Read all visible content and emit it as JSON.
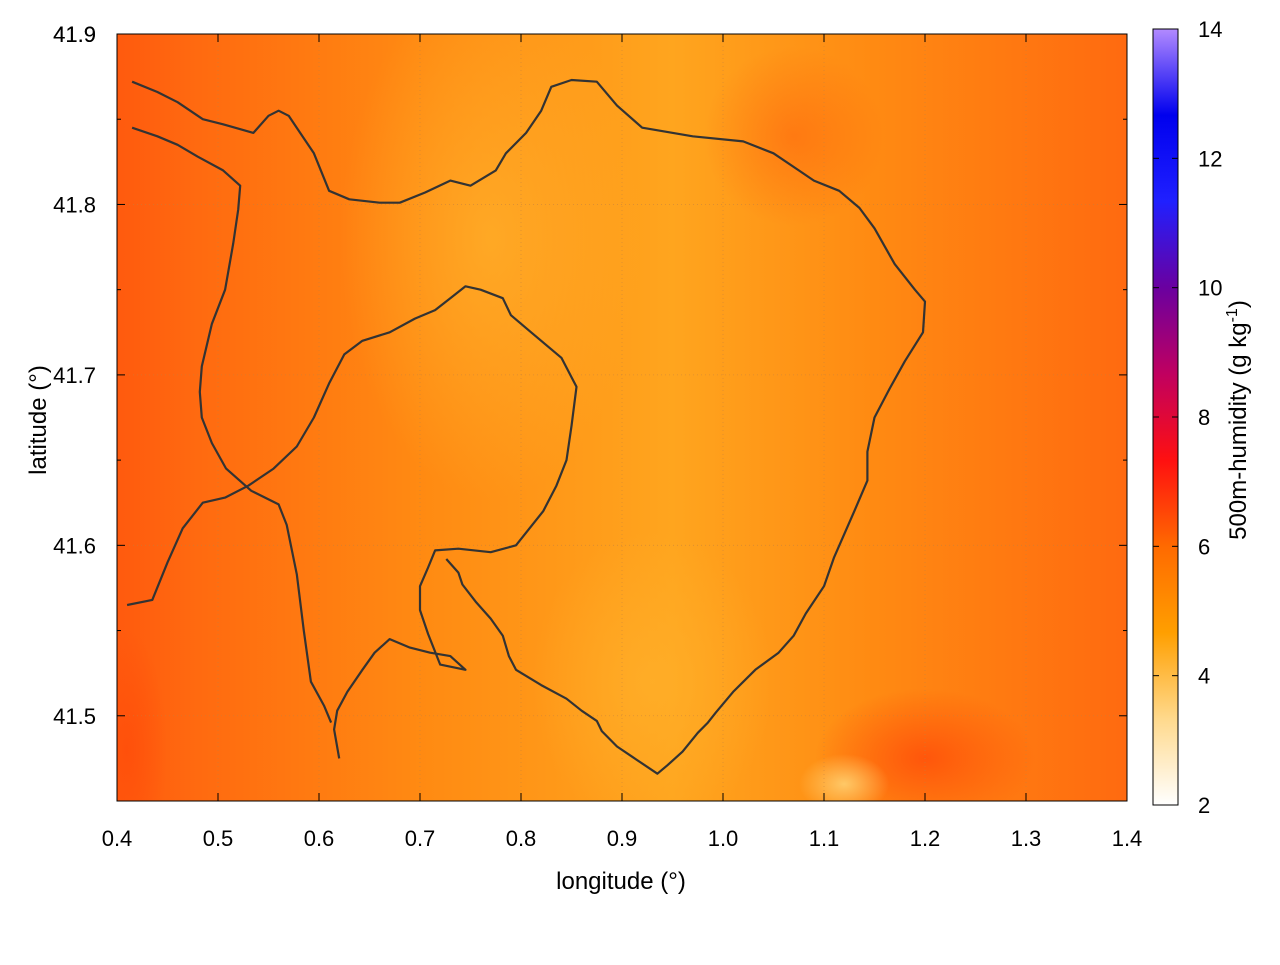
{
  "chart_data": {
    "type": "heatmap",
    "subtype": "filled contour map with contour lines",
    "title": "",
    "xlabel": "longitude (°)",
    "ylabel": "latitude (°)",
    "colorbar_label_main": "500m-humidity (g kg",
    "colorbar_label_sup": "-1",
    "colorbar_label_close": ")",
    "xlim": [
      0.4,
      1.4
    ],
    "ylim": [
      41.45,
      41.9
    ],
    "x_ticks": [
      "0.4",
      "0.5",
      "0.6",
      "0.7",
      "0.8",
      "0.9",
      "1.0",
      "1.1",
      "1.2",
      "1.3",
      "1.4"
    ],
    "y_ticks": [
      "41.5",
      "41.6",
      "41.7",
      "41.8",
      "41.9"
    ],
    "colorbar_ticks": [
      "2",
      "4",
      "6",
      "8",
      "10",
      "12",
      "14"
    ],
    "colorbar_range": [
      2,
      14
    ],
    "colorbar_colors": [
      "#ffffff",
      "#ffd98c",
      "#ff9f00",
      "#ff6a00",
      "#ff1010",
      "#c00060",
      "#6a00a0",
      "#2020ff",
      "#0000ee",
      "#b28aff"
    ],
    "field_colors": {
      "base": "#ff8a12",
      "light": "#ffa51e",
      "dark": "#ff6a10",
      "darker": "#ff5a0e"
    },
    "grid": true,
    "contour_color": "#333333",
    "field_estimate": "humidity mostly between 5 and 7 g/kg; lower (~4-5) in central/southern light band, higher (~6.5-7) along west edge and near (1.2, 41.47)",
    "contours": [
      [
        [
          0.415,
          41.872
        ],
        [
          0.44,
          41.866
        ],
        [
          0.46,
          41.86
        ],
        [
          0.485,
          41.85
        ],
        [
          0.505,
          41.847
        ],
        [
          0.535,
          41.842
        ],
        [
          0.55,
          41.852
        ],
        [
          0.56,
          41.855
        ],
        [
          0.57,
          41.852
        ],
        [
          0.595,
          41.83
        ],
        [
          0.61,
          41.808
        ],
        [
          0.63,
          41.803
        ],
        [
          0.66,
          41.801
        ],
        [
          0.68,
          41.801
        ],
        [
          0.705,
          41.807
        ],
        [
          0.73,
          41.814
        ],
        [
          0.75,
          41.811
        ],
        [
          0.775,
          41.82
        ],
        [
          0.785,
          41.83
        ],
        [
          0.805,
          41.842
        ],
        [
          0.82,
          41.855
        ],
        [
          0.83,
          41.869
        ],
        [
          0.85,
          41.873
        ],
        [
          0.875,
          41.872
        ],
        [
          0.895,
          41.858
        ],
        [
          0.92,
          41.845
        ],
        [
          0.97,
          41.84
        ],
        [
          1.02,
          41.837
        ],
        [
          1.05,
          41.83
        ],
        [
          1.075,
          41.82
        ],
        [
          1.09,
          41.814
        ],
        [
          1.115,
          41.808
        ],
        [
          1.135,
          41.798
        ],
        [
          1.15,
          41.786
        ],
        [
          1.17,
          41.765
        ],
        [
          1.19,
          41.75
        ],
        [
          1.2,
          41.743
        ],
        [
          1.198,
          41.725
        ],
        [
          1.18,
          41.708
        ],
        [
          1.165,
          41.692
        ],
        [
          1.15,
          41.675
        ],
        [
          1.143,
          41.655
        ],
        [
          1.143,
          41.638
        ],
        [
          1.13,
          41.62
        ],
        [
          1.11,
          41.593
        ],
        [
          1.1,
          41.576
        ],
        [
          1.082,
          41.56
        ],
        [
          1.07,
          41.547
        ],
        [
          1.055,
          41.537
        ],
        [
          1.032,
          41.527
        ],
        [
          1.01,
          41.514
        ],
        [
          0.993,
          41.502
        ],
        [
          0.985,
          41.496
        ],
        [
          0.975,
          41.49
        ],
        [
          0.96,
          41.479
        ],
        [
          0.945,
          41.471
        ],
        [
          0.935,
          41.466
        ],
        [
          0.91,
          41.476
        ],
        [
          0.895,
          41.482
        ],
        [
          0.88,
          41.491
        ],
        [
          0.875,
          41.497
        ],
        [
          0.86,
          41.503
        ],
        [
          0.845,
          41.51
        ],
        [
          0.82,
          41.518
        ],
        [
          0.795,
          41.527
        ],
        [
          0.788,
          41.535
        ],
        [
          0.782,
          41.547
        ],
        [
          0.77,
          41.557
        ],
        [
          0.755,
          41.567
        ],
        [
          0.742,
          41.577
        ],
        [
          0.738,
          41.584
        ],
        [
          0.726,
          41.592
        ]
      ],
      [
        [
          0.41,
          41.565
        ],
        [
          0.435,
          41.568
        ],
        [
          0.45,
          41.59
        ],
        [
          0.465,
          41.61
        ],
        [
          0.485,
          41.625
        ],
        [
          0.507,
          41.628
        ],
        [
          0.53,
          41.635
        ],
        [
          0.555,
          41.645
        ],
        [
          0.578,
          41.658
        ],
        [
          0.595,
          41.675
        ],
        [
          0.61,
          41.695
        ],
        [
          0.625,
          41.712
        ],
        [
          0.643,
          41.72
        ],
        [
          0.67,
          41.725
        ],
        [
          0.695,
          41.733
        ],
        [
          0.715,
          41.738
        ],
        [
          0.73,
          41.745
        ],
        [
          0.745,
          41.752
        ],
        [
          0.76,
          41.75
        ],
        [
          0.782,
          41.745
        ],
        [
          0.79,
          41.735
        ],
        [
          0.81,
          41.725
        ],
        [
          0.84,
          41.71
        ],
        [
          0.855,
          41.693
        ],
        [
          0.85,
          41.67
        ],
        [
          0.845,
          41.65
        ],
        [
          0.835,
          41.635
        ],
        [
          0.822,
          41.62
        ],
        [
          0.795,
          41.6
        ],
        [
          0.77,
          41.596
        ],
        [
          0.738,
          41.598
        ],
        [
          0.715,
          41.597
        ],
        [
          0.708,
          41.587
        ],
        [
          0.7,
          41.576
        ],
        [
          0.7,
          41.562
        ],
        [
          0.708,
          41.548
        ],
        [
          0.72,
          41.53
        ],
        [
          0.745,
          41.527
        ],
        [
          0.73,
          41.535
        ],
        [
          0.71,
          41.537
        ],
        [
          0.69,
          41.54
        ],
        [
          0.67,
          41.545
        ],
        [
          0.655,
          41.537
        ],
        [
          0.643,
          41.527
        ],
        [
          0.628,
          41.514
        ],
        [
          0.618,
          41.503
        ],
        [
          0.615,
          41.492
        ],
        [
          0.62,
          41.475
        ]
      ],
      [
        [
          0.415,
          41.845
        ],
        [
          0.44,
          41.84
        ],
        [
          0.46,
          41.835
        ],
        [
          0.48,
          41.828
        ],
        [
          0.505,
          41.82
        ],
        [
          0.522,
          41.811
        ],
        [
          0.52,
          41.797
        ],
        [
          0.515,
          41.777
        ],
        [
          0.507,
          41.75
        ],
        [
          0.494,
          41.73
        ],
        [
          0.484,
          41.705
        ],
        [
          0.482,
          41.69
        ],
        [
          0.484,
          41.675
        ],
        [
          0.494,
          41.66
        ],
        [
          0.508,
          41.645
        ],
        [
          0.533,
          41.632
        ],
        [
          0.56,
          41.624
        ],
        [
          0.568,
          41.612
        ],
        [
          0.578,
          41.583
        ],
        [
          0.585,
          41.55
        ],
        [
          0.592,
          41.52
        ],
        [
          0.605,
          41.506
        ],
        [
          0.612,
          41.496
        ]
      ]
    ]
  }
}
